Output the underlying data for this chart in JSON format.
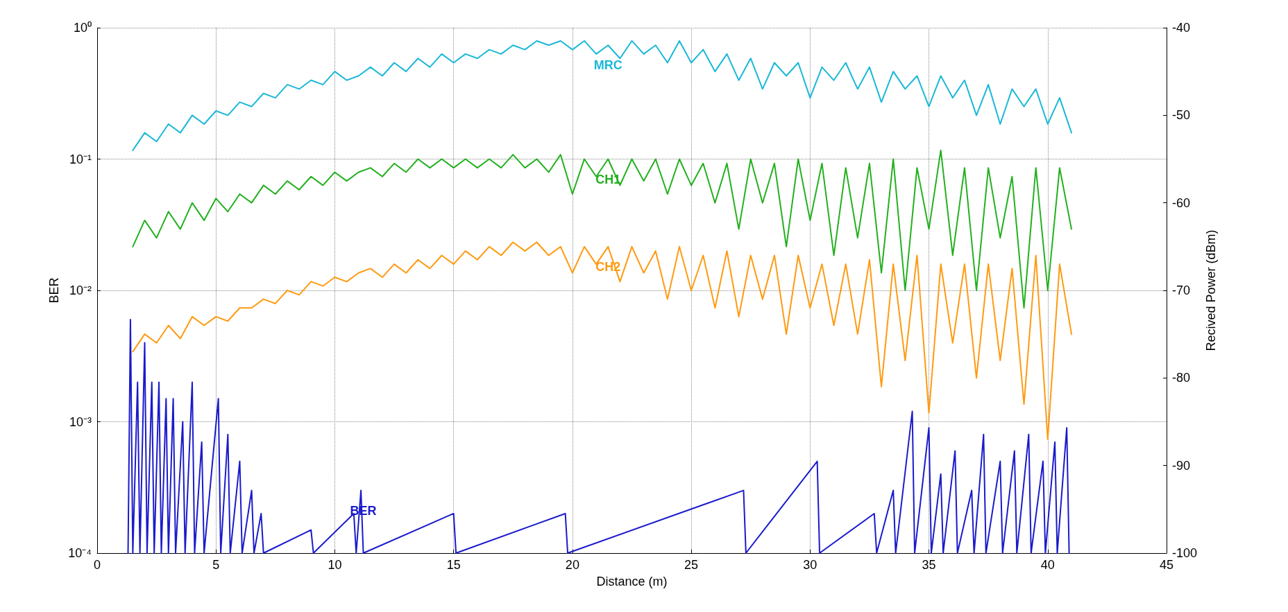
{
  "chart_data": {
    "type": "line",
    "xlabel": "Distance (m)",
    "ylabel": "BER",
    "y2label": "Recived Power (dBm)",
    "xlim": [
      0,
      45
    ],
    "xticks": [
      0,
      5,
      10,
      15,
      20,
      25,
      30,
      35,
      40,
      45
    ],
    "ylim": [
      0.0001,
      1
    ],
    "yticks": [
      {
        "value": 0.0001,
        "label": "10⁻⁴"
      },
      {
        "value": 0.001,
        "label": "10⁻³"
      },
      {
        "value": 0.01,
        "label": "10⁻²"
      },
      {
        "value": 0.1,
        "label": "10⁻¹"
      },
      {
        "value": 1,
        "label": "10⁰"
      }
    ],
    "y2lim": [
      -100,
      -40
    ],
    "y2ticks": [
      -100,
      -90,
      -80,
      -70,
      -60,
      -50,
      -40
    ],
    "log": "y",
    "grid": true,
    "legend": false,
    "line_style": "solid",
    "x": [
      1.5,
      2,
      2.5,
      3,
      3.5,
      4,
      4.5,
      5,
      5.5,
      6,
      6.5,
      7,
      7.5,
      8,
      8.5,
      9,
      9.5,
      10,
      10.5,
      11,
      11.5,
      12,
      12.5,
      13,
      13.5,
      14,
      14.5,
      15,
      15.5,
      16,
      16.5,
      17,
      17.5,
      18,
      18.5,
      19,
      19.5,
      20,
      20.5,
      21,
      21.5,
      22,
      22.5,
      23,
      23.5,
      24,
      24.5,
      25,
      25.5,
      26,
      26.5,
      27,
      27.5,
      28,
      28.5,
      29,
      29.5,
      30,
      30.5,
      31,
      31.5,
      32,
      32.5,
      33,
      33.5,
      34,
      34.5,
      35,
      35.5,
      36,
      36.5,
      37,
      37.5,
      38,
      38.5,
      39,
      39.5,
      40,
      40.5,
      41
    ],
    "series": [
      {
        "name": "MRC",
        "color": "#1ab8d8",
        "axis": "y2",
        "values": [
          -54,
          -52,
          -53,
          -51,
          -52,
          -50,
          -51,
          -49.5,
          -50,
          -48.5,
          -49,
          -47.5,
          -48,
          -46.5,
          -47,
          -46,
          -46.5,
          -45,
          -46,
          -45.5,
          -44.5,
          -45.5,
          -44,
          -45,
          -43.5,
          -44.5,
          -43,
          -44,
          -43,
          -43.5,
          -42.5,
          -43,
          -42,
          -42.5,
          -41.5,
          -42,
          -41.5,
          -42.5,
          -41.5,
          -43,
          -42,
          -43.5,
          -41.5,
          -43,
          -42,
          -44,
          -41.5,
          -44,
          -42.5,
          -45,
          -43,
          -46,
          -43.5,
          -47,
          -44,
          -45.5,
          -44,
          -48,
          -44.5,
          -46,
          -44,
          -47,
          -44.5,
          -48.5,
          -45,
          -47,
          -45.5,
          -49,
          -45.5,
          -48,
          -46,
          -50,
          -46.5,
          -51,
          -47,
          -49,
          -47,
          -51,
          -48,
          -52
        ]
      },
      {
        "name": "CH1",
        "color": "#22b01e",
        "axis": "y2",
        "values": [
          -65,
          -62,
          -64,
          -61,
          -63,
          -60,
          -62,
          -59.5,
          -61,
          -59,
          -60,
          -58,
          -59,
          -57.5,
          -58.5,
          -57,
          -58,
          -56.5,
          -57.5,
          -56.5,
          -56,
          -57,
          -55.5,
          -56.5,
          -55,
          -56,
          -55,
          -56,
          -55,
          -56,
          -55,
          -56,
          -54.5,
          -56,
          -55,
          -56.5,
          -54.5,
          -59,
          -55,
          -57,
          -55,
          -58,
          -55,
          -57.5,
          -55,
          -59,
          -55,
          -58,
          -55.5,
          -60,
          -55.5,
          -63,
          -55,
          -60,
          -55.5,
          -65,
          -55,
          -62,
          -55.5,
          -66,
          -56,
          -64,
          -55.5,
          -68,
          -55,
          -70,
          -56,
          -63,
          -54,
          -66,
          -56,
          -70,
          -56,
          -64,
          -57,
          -72,
          -56,
          -70,
          -56,
          -63
        ]
      },
      {
        "name": "CH2",
        "color": "#ff9a10",
        "axis": "y2",
        "values": [
          -77,
          -75,
          -76,
          -74,
          -75.5,
          -73,
          -74,
          -73,
          -73.5,
          -72,
          -72,
          -71,
          -71.5,
          -70,
          -70.5,
          -69,
          -69.5,
          -68.5,
          -69,
          -68,
          -67.5,
          -68.5,
          -67,
          -68,
          -66.5,
          -67.5,
          -66,
          -67,
          -65.5,
          -66.5,
          -65,
          -66,
          -64.5,
          -65.5,
          -64.5,
          -66,
          -65,
          -68,
          -65,
          -67,
          -65,
          -69,
          -65,
          -68,
          -65.5,
          -71,
          -65,
          -70,
          -66,
          -72,
          -65.5,
          -73,
          -66,
          -71,
          -66,
          -75,
          -66,
          -72,
          -67,
          -74,
          -67,
          -75,
          -66.5,
          -81,
          -67,
          -78,
          -66,
          -84,
          -67,
          -76,
          -67,
          -80,
          -67,
          -78,
          -67.5,
          -83,
          -66,
          -87,
          -67,
          -75
        ]
      },
      {
        "name": "BER",
        "color": "#1a1acc",
        "x": [
          1.3,
          1.4,
          1.5,
          1.7,
          1.8,
          2.0,
          2.1,
          2.3,
          2.4,
          2.6,
          2.7,
          2.9,
          3.0,
          3.2,
          3.3,
          3.6,
          3.7,
          4.0,
          4.1,
          4.4,
          4.5,
          5.1,
          5.2,
          5.5,
          5.6,
          6.0,
          6.1,
          6.5,
          6.6,
          6.9,
          7.0,
          9.0,
          9.1,
          10.8,
          10.9,
          11.1,
          11.2,
          15.0,
          15.1,
          19.7,
          19.8,
          27.2,
          27.3,
          30.3,
          30.4,
          32.7,
          32.8,
          33.5,
          33.6,
          34.3,
          34.4,
          35.0,
          35.1,
          35.5,
          35.6,
          36.1,
          36.2,
          36.8,
          36.9,
          37.3,
          37.4,
          38.0,
          38.1,
          38.6,
          38.7,
          39.2,
          39.3,
          39.8,
          39.9,
          40.3,
          40.4,
          40.8,
          40.9
        ],
        "values": [
          0.0001,
          0.006,
          0.0001,
          0.002,
          0.0001,
          0.004,
          0.0001,
          0.002,
          0.0001,
          0.002,
          0.0001,
          0.0015,
          0.0001,
          0.0015,
          0.0001,
          0.001,
          0.0001,
          0.002,
          0.0001,
          0.0007,
          0.0001,
          0.0015,
          0.0001,
          0.0008,
          0.0001,
          0.0005,
          0.0001,
          0.0003,
          0.0001,
          0.0002,
          0.0001,
          0.00015,
          0.0001,
          0.0002,
          0.0001,
          0.0003,
          0.0001,
          0.0002,
          0.0001,
          0.0002,
          0.0001,
          0.0003,
          0.0001,
          0.0005,
          0.0001,
          0.0002,
          0.0001,
          0.0003,
          0.0001,
          0.0012,
          0.0001,
          0.0009,
          0.0001,
          0.0004,
          0.0001,
          0.0006,
          0.0001,
          0.0003,
          0.0001,
          0.0008,
          0.0001,
          0.0005,
          0.0001,
          0.0006,
          0.0001,
          0.0008,
          0.0001,
          0.0005,
          0.0001,
          0.0007,
          0.0001,
          0.0009,
          0.0001
        ]
      }
    ]
  }
}
